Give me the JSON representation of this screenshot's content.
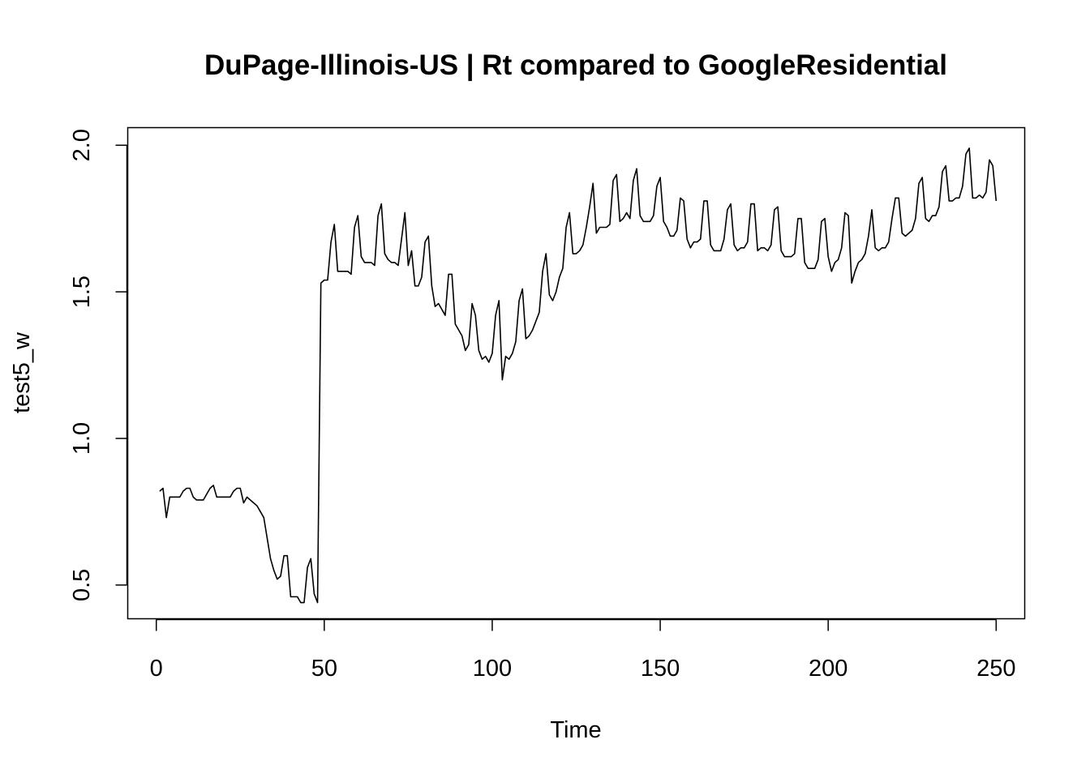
{
  "chart_data": {
    "type": "line",
    "title": "DuPage-Illinois-US | Rt compared to GoogleResidential",
    "xlabel": "Time",
    "ylabel": "test5_w",
    "xlim": [
      -8.5,
      258.5
    ],
    "ylim": [
      0.385,
      2.06
    ],
    "x_ticks": [
      0,
      50,
      100,
      150,
      200,
      250
    ],
    "y_ticks": [
      0.5,
      1.0,
      1.5,
      2.0
    ],
    "x_tick_labels": [
      "0",
      "50",
      "100",
      "150",
      "200",
      "250"
    ],
    "y_tick_labels": [
      "0.5",
      "1.0",
      "1.5",
      "2.0"
    ],
    "line_color": "#000000",
    "series": [
      {
        "x_start": 1,
        "values": [
          0.82,
          0.83,
          0.73,
          0.8,
          0.8,
          0.8,
          0.8,
          0.82,
          0.83,
          0.83,
          0.8,
          0.79,
          0.79,
          0.79,
          0.81,
          0.83,
          0.84,
          0.8,
          0.8,
          0.8,
          0.8,
          0.8,
          0.82,
          0.83,
          0.83,
          0.78,
          0.8,
          0.79,
          0.78,
          0.77,
          0.75,
          0.73,
          0.66,
          0.59,
          0.55,
          0.52,
          0.53,
          0.6,
          0.6,
          0.46,
          0.46,
          0.46,
          0.44,
          0.44,
          0.56,
          0.59,
          0.47,
          0.44,
          1.53,
          1.54,
          1.54,
          1.67,
          1.73,
          1.57,
          1.57,
          1.57,
          1.57,
          1.56,
          1.72,
          1.76,
          1.62,
          1.6,
          1.6,
          1.6,
          1.59,
          1.76,
          1.8,
          1.63,
          1.61,
          1.6,
          1.6,
          1.59,
          1.68,
          1.77,
          1.59,
          1.64,
          1.52,
          1.52,
          1.55,
          1.67,
          1.69,
          1.52,
          1.45,
          1.46,
          1.44,
          1.42,
          1.56,
          1.56,
          1.39,
          1.37,
          1.35,
          1.3,
          1.32,
          1.46,
          1.42,
          1.3,
          1.27,
          1.28,
          1.26,
          1.29,
          1.42,
          1.47,
          1.2,
          1.28,
          1.27,
          1.29,
          1.33,
          1.47,
          1.51,
          1.34,
          1.35,
          1.37,
          1.4,
          1.43,
          1.57,
          1.63,
          1.49,
          1.47,
          1.5,
          1.55,
          1.58,
          1.72,
          1.77,
          1.63,
          1.63,
          1.64,
          1.66,
          1.72,
          1.79,
          1.87,
          1.7,
          1.72,
          1.72,
          1.72,
          1.73,
          1.88,
          1.9,
          1.74,
          1.75,
          1.77,
          1.75,
          1.88,
          1.92,
          1.76,
          1.74,
          1.74,
          1.74,
          1.76,
          1.86,
          1.89,
          1.74,
          1.72,
          1.69,
          1.69,
          1.71,
          1.82,
          1.81,
          1.68,
          1.65,
          1.67,
          1.67,
          1.68,
          1.81,
          1.81,
          1.66,
          1.64,
          1.64,
          1.64,
          1.68,
          1.78,
          1.8,
          1.66,
          1.64,
          1.65,
          1.65,
          1.67,
          1.8,
          1.8,
          1.64,
          1.65,
          1.65,
          1.64,
          1.66,
          1.78,
          1.79,
          1.64,
          1.62,
          1.62,
          1.62,
          1.63,
          1.75,
          1.75,
          1.6,
          1.58,
          1.58,
          1.58,
          1.61,
          1.74,
          1.75,
          1.62,
          1.57,
          1.6,
          1.61,
          1.65,
          1.77,
          1.76,
          1.53,
          1.57,
          1.6,
          1.61,
          1.63,
          1.69,
          1.78,
          1.65,
          1.64,
          1.65,
          1.65,
          1.67,
          1.75,
          1.82,
          1.82,
          1.7,
          1.69,
          1.7,
          1.71,
          1.75,
          1.87,
          1.89,
          1.75,
          1.74,
          1.76,
          1.76,
          1.79,
          1.91,
          1.93,
          1.81,
          1.81,
          1.82,
          1.82,
          1.86,
          1.97,
          1.99,
          1.82,
          1.82,
          1.83,
          1.82,
          1.84,
          1.95,
          1.93,
          1.81
        ]
      }
    ]
  }
}
